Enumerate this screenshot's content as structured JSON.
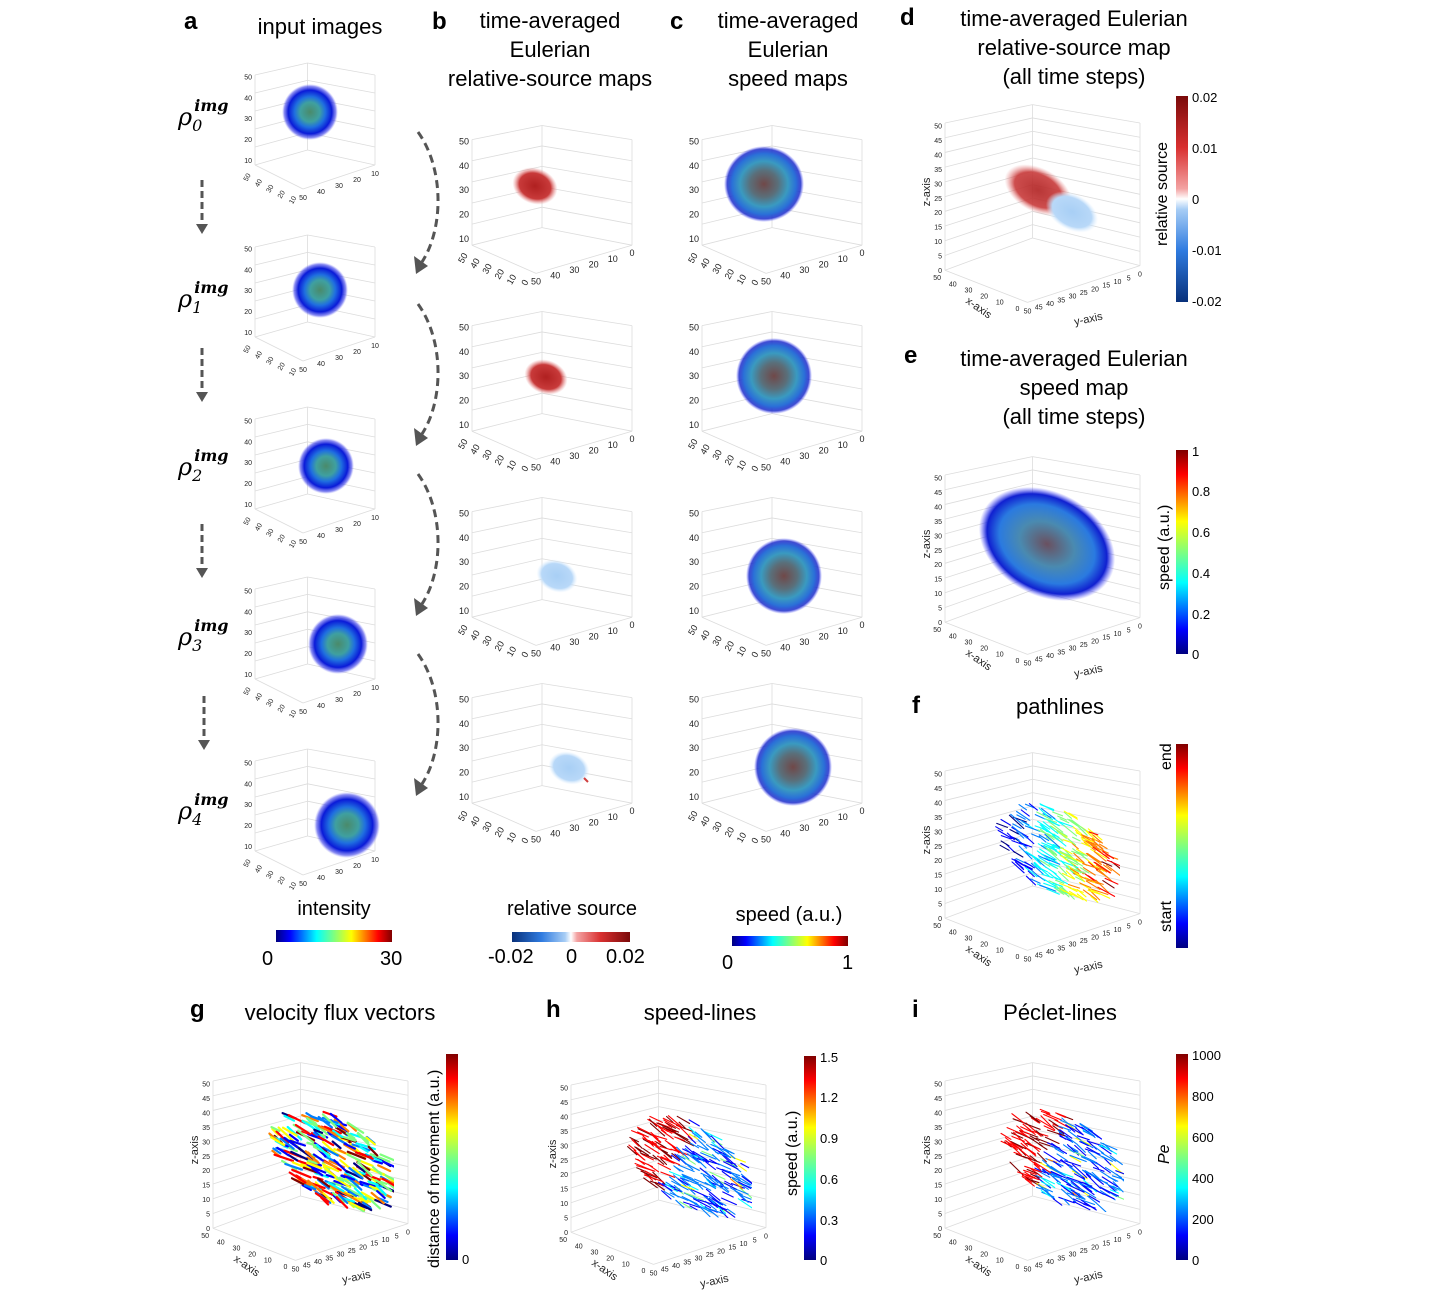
{
  "panels": {
    "a": {
      "label": "a",
      "title": "input images",
      "rows": [
        {
          "base": "ρ",
          "sup": "img",
          "sub": "0"
        },
        {
          "base": "ρ",
          "sup": "img",
          "sub": "1"
        },
        {
          "base": "ρ",
          "sup": "img",
          "sub": "2"
        },
        {
          "base": "ρ",
          "sup": "img",
          "sub": "3"
        },
        {
          "base": "ρ",
          "sup": "img",
          "sub": "4"
        }
      ],
      "colorbar": {
        "title": "intensity",
        "min": "0",
        "max": "30"
      }
    },
    "b": {
      "label": "b",
      "title_lines": [
        "time-averaged",
        "Eulerian",
        "relative-source maps"
      ],
      "colorbar": {
        "title": "relative source",
        "min": "-0.02",
        "mid": "0",
        "max": "0.02"
      }
    },
    "c": {
      "label": "c",
      "title_lines": [
        "time-averaged",
        "Eulerian",
        "speed maps"
      ],
      "colorbar": {
        "title": "speed (a.u.)",
        "min": "0",
        "max": "1"
      }
    },
    "d": {
      "label": "d",
      "title_lines": [
        "time-averaged Eulerian",
        "relative-source map",
        "(all time steps)"
      ],
      "colorbar": {
        "label": "relative source",
        "ticks": [
          "0.02",
          "0.01",
          "0",
          "-0.01",
          "-0.02"
        ]
      }
    },
    "e": {
      "label": "e",
      "title_lines": [
        "time-averaged Eulerian",
        "speed map",
        "(all time steps)"
      ],
      "colorbar": {
        "label": "speed (a.u.)",
        "ticks": [
          "1",
          "0.8",
          "0.6",
          "0.4",
          "0.2",
          "0"
        ]
      }
    },
    "f": {
      "label": "f",
      "title": "pathlines",
      "colorbar": {
        "top": "end",
        "bottom": "start"
      }
    },
    "g": {
      "label": "g",
      "title": "velocity flux vectors",
      "colorbar": {
        "label": "distance of movement (a.u.)",
        "ticks": [
          "0"
        ]
      }
    },
    "h": {
      "label": "h",
      "title": "speed-lines",
      "colorbar": {
        "label": "speed (a.u.)",
        "ticks": [
          "1.5",
          "1.2",
          "0.9",
          "0.6",
          "0.3",
          "0"
        ]
      }
    },
    "i": {
      "label": "i",
      "title": "Péclet-lines",
      "colorbar": {
        "label": "Pe",
        "ticks": [
          "1000",
          "800",
          "600",
          "400",
          "200",
          "0"
        ]
      }
    }
  },
  "axes": {
    "z_ticks_small": [
      "50",
      "40",
      "30",
      "20",
      "10"
    ],
    "z_ticks_big": [
      "50",
      "45",
      "40",
      "35",
      "30",
      "25",
      "20",
      "15",
      "10",
      "5",
      "0"
    ],
    "y_ticks_small": [
      "50",
      "40",
      "30",
      "20",
      "10",
      "0"
    ],
    "x_ticks_small": [
      "50",
      "40",
      "30",
      "20",
      "10",
      "0"
    ],
    "x_ticks_a": [
      "50",
      "40",
      "30",
      "20",
      "10"
    ],
    "y_ticks_a": [
      "50",
      "40",
      "30",
      "20",
      "10"
    ],
    "x_ticks_big": [
      "50",
      "40",
      "30",
      "20",
      "10",
      "0"
    ],
    "y_ticks_big": [
      "50",
      "45",
      "40",
      "35",
      "30",
      "25",
      "20",
      "15",
      "10",
      "5",
      "0"
    ],
    "x_label": "x-axis",
    "y_label": "y-axis",
    "z_label": "z-axis"
  },
  "colors": {
    "jet": [
      "#00007f",
      "#0000ff",
      "#007fff",
      "#00ffff",
      "#7fff7f",
      "#ffff00",
      "#ff7f00",
      "#ff0000",
      "#7f0000"
    ],
    "diverging": [
      "#08307a",
      "#2f7be0",
      "#a7cdf5",
      "#ffffff",
      "#f3a3a3",
      "#d93030",
      "#7a0a0a"
    ]
  }
}
